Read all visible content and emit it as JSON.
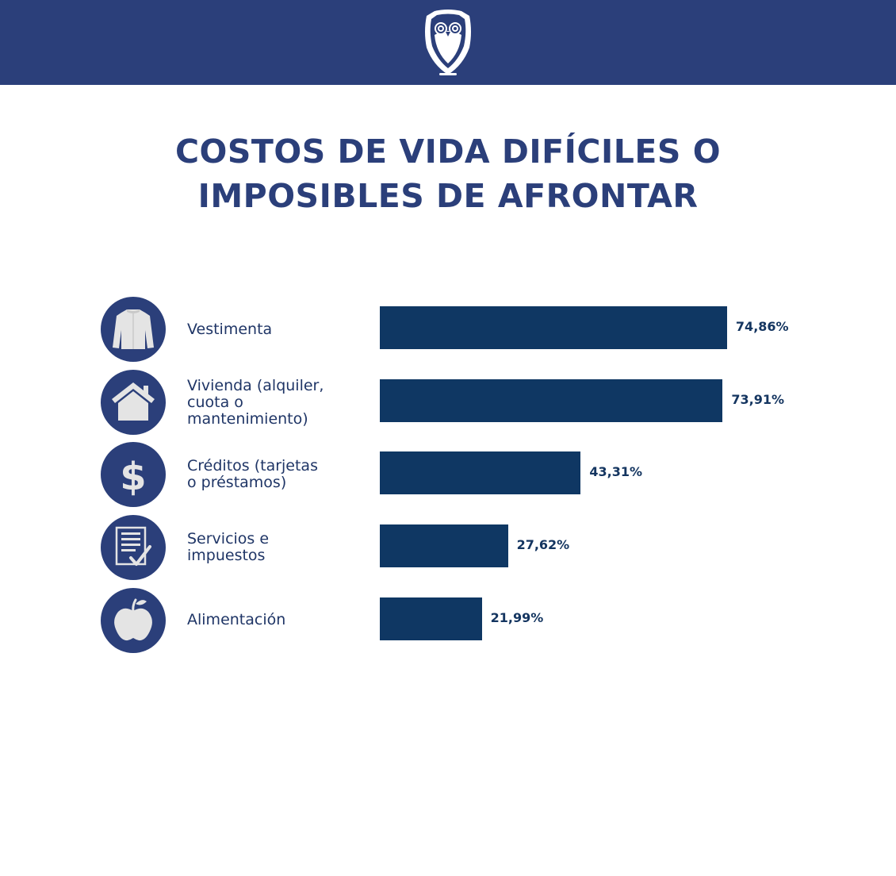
{
  "header": {
    "logo_icon": "owl-logo-icon",
    "bg_color": "#2b3f7a"
  },
  "title": {
    "line1": "COSTOS DE VIDA DIFÍCILES O",
    "line2": "IMPOSIBLES DE AFRONTAR"
  },
  "chart_data": {
    "type": "bar",
    "orientation": "horizontal",
    "title": "COSTOS DE VIDA DIFÍCILES O IMPOSIBLES DE AFRONTAR",
    "xlim": [
      0,
      100
    ],
    "unit": "%",
    "bar_color": "#0f3763",
    "categories": [
      "Vestimenta",
      "Vivienda (alquiler,\ncuota o\nmantenimiento)",
      "Créditos (tarjetas\no préstamos)",
      "Servicios e\nimpuestos",
      "Alimentación"
    ],
    "values": [
      74.86,
      73.91,
      43.31,
      27.62,
      21.99
    ],
    "value_labels": [
      "74,86%",
      "73,91%",
      "43,31%",
      "27,62%",
      "21,99%"
    ],
    "icons": [
      "shirt-icon",
      "house-icon",
      "dollar-icon",
      "document-check-icon",
      "apple-icon"
    ]
  }
}
